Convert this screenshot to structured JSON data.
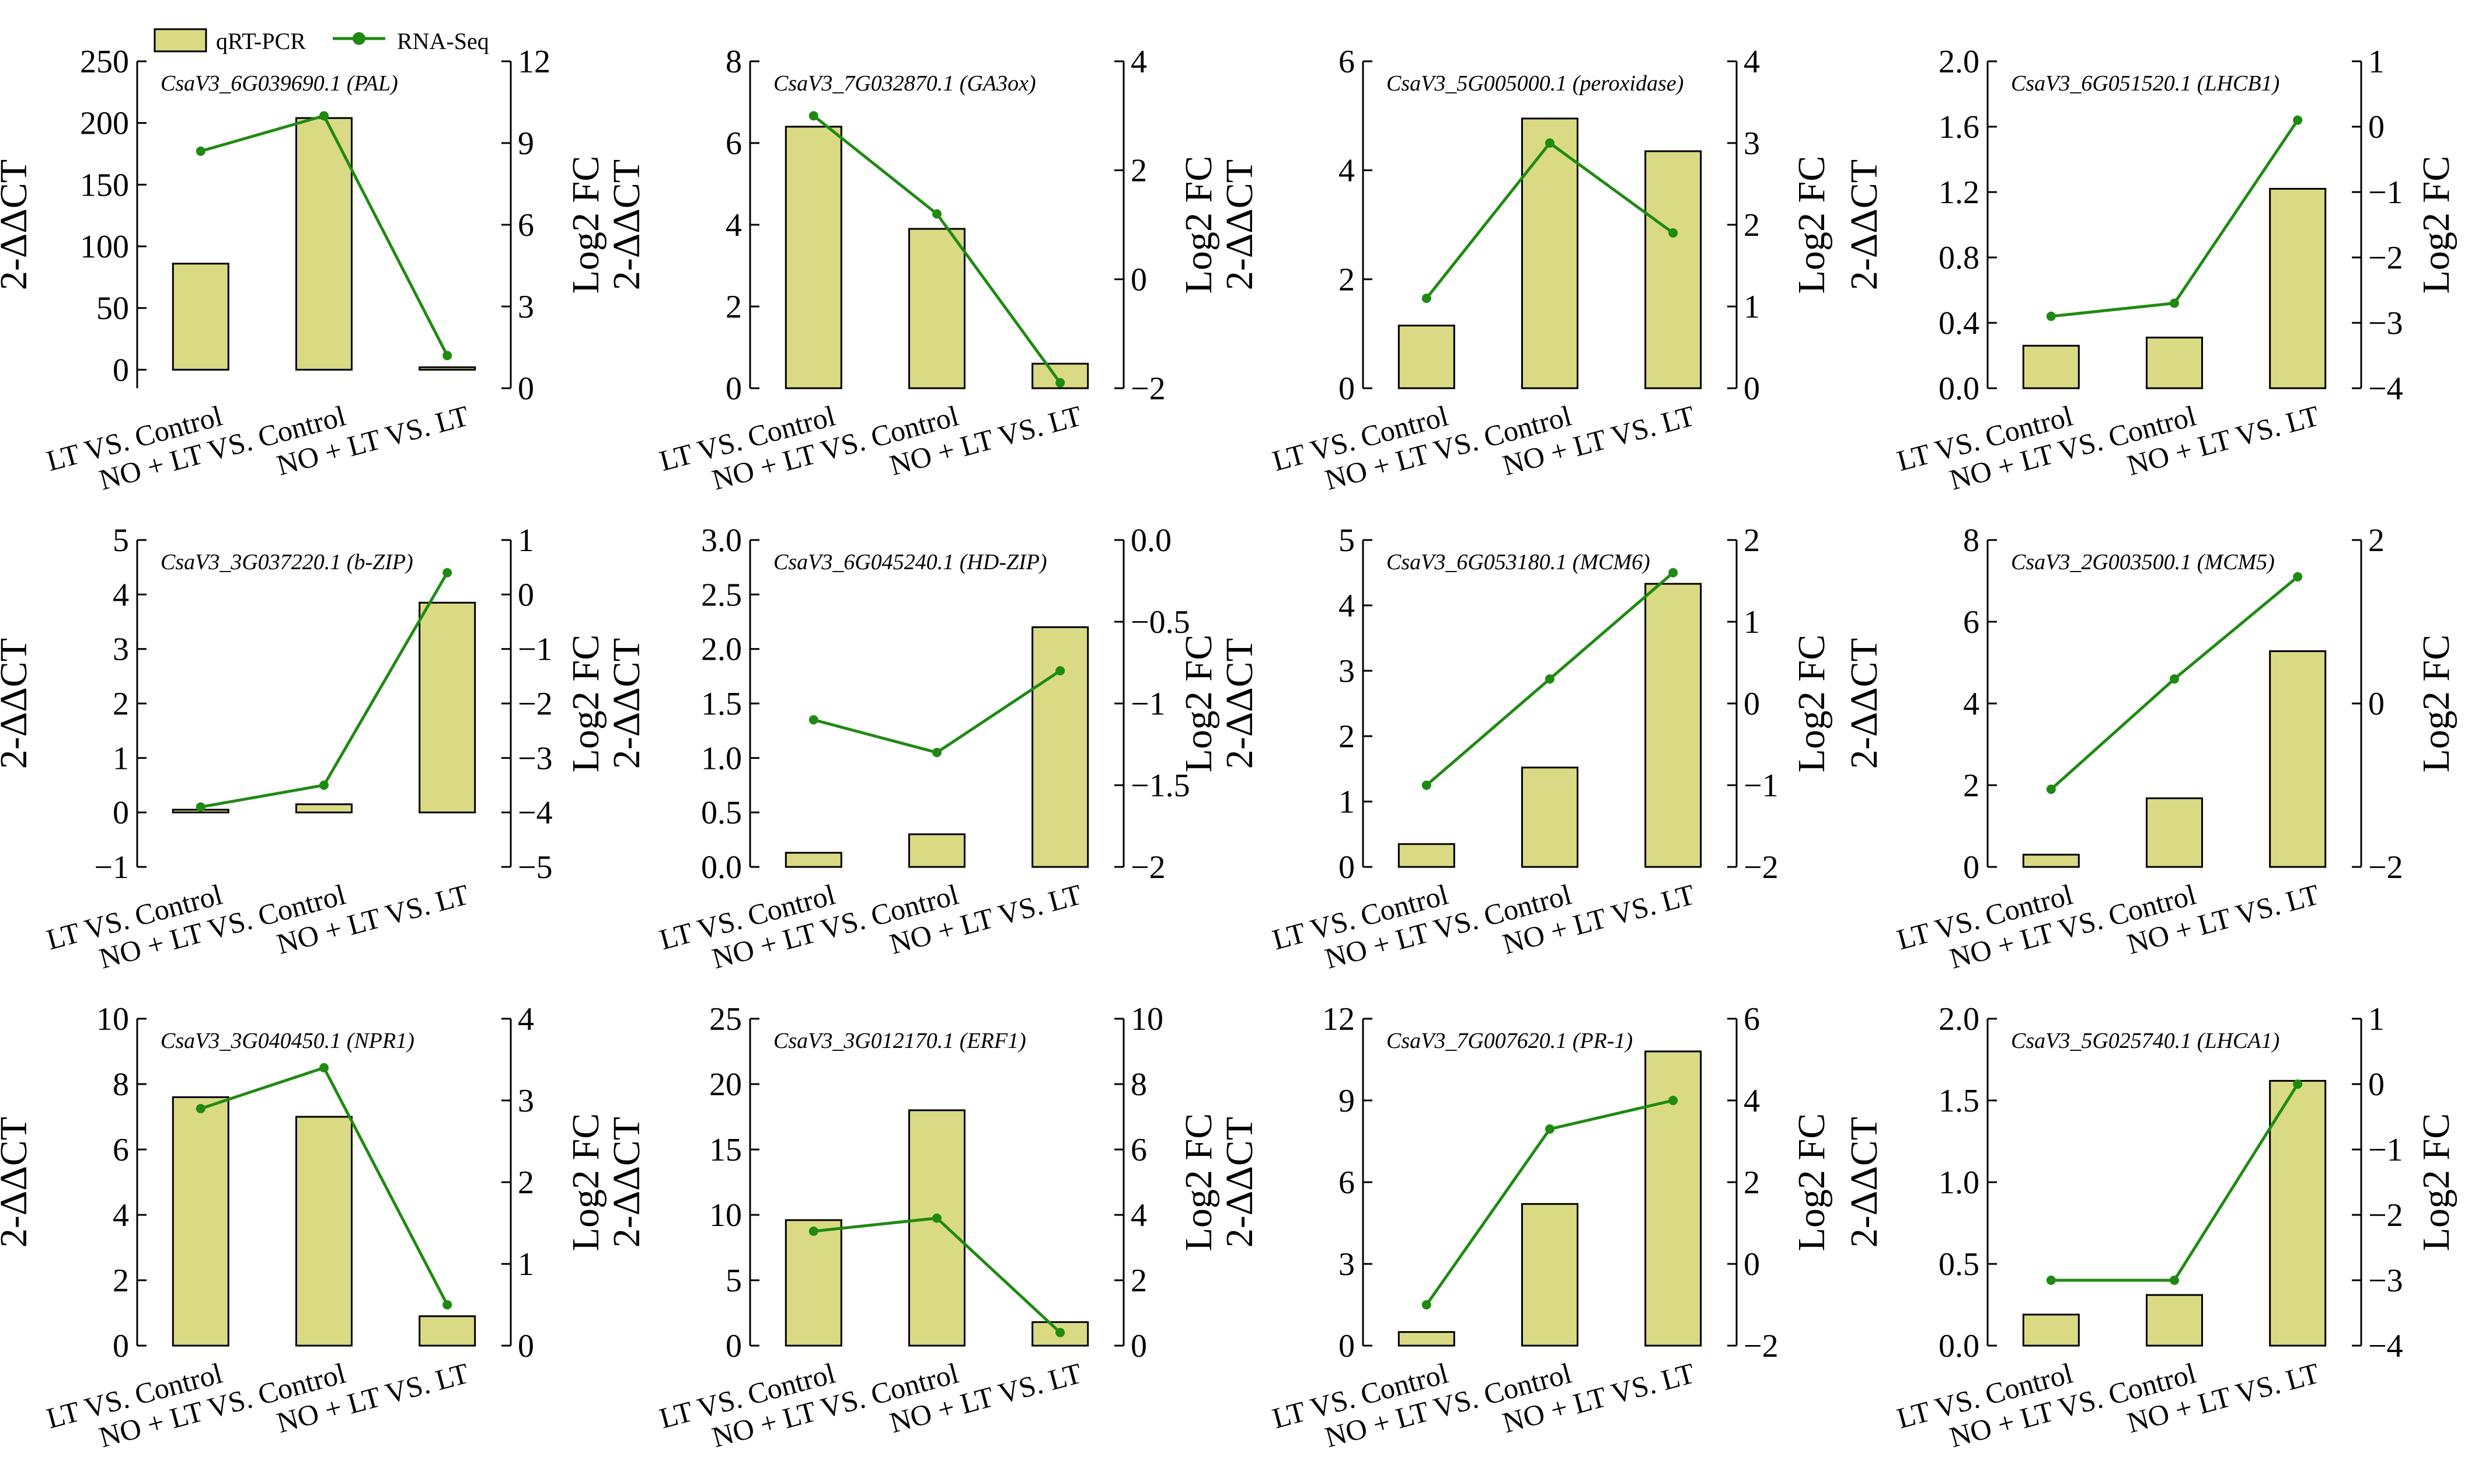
{
  "legend": {
    "bar_label": "qRT-PCR",
    "line_label": "RNA-Seq"
  },
  "colors": {
    "bar_fill": "#dada84",
    "line": "#1f8a12"
  },
  "chart_data": [
    {
      "type": "bar+line",
      "title": "CsaV3_6G039690.1 (PAL)",
      "categories": [
        "LT VS. Control",
        "NO + LT VS. Control",
        "NO + LT VS. LT"
      ],
      "bar_series": {
        "name": "qRT-PCR",
        "values": [
          86,
          204,
          2
        ]
      },
      "line_series": {
        "name": "RNA-Seq",
        "values": [
          8.7,
          10.0,
          1.2
        ]
      },
      "ylabel_left": "2-ΔΔCT",
      "ylabel_right": "Log2 FC",
      "ylim_left": [
        -15,
        250
      ],
      "yticks_left": [
        0,
        50,
        100,
        150,
        200,
        250
      ],
      "yticklabels_left": [
        "0",
        "50",
        "100",
        "150",
        "200",
        "250"
      ],
      "ylim_right": [
        0,
        12
      ],
      "yticks_right": [
        0,
        3,
        6,
        9,
        12
      ],
      "yticklabels_right": [
        "0",
        "3",
        "6",
        "9",
        "12"
      ]
    },
    {
      "type": "bar+line",
      "title": "CsaV3_7G032870.1 (GA3ox)",
      "categories": [
        "LT VS. Control",
        "NO + LT VS. Control",
        "NO + LT VS. LT"
      ],
      "bar_series": {
        "name": "qRT-PCR",
        "values": [
          6.4,
          3.9,
          0.6
        ]
      },
      "line_series": {
        "name": "RNA-Seq",
        "values": [
          3.0,
          1.2,
          -1.9
        ]
      },
      "ylabel_left": "2-ΔΔCT",
      "ylabel_right": "Log2 FC",
      "ylim_left": [
        0,
        8
      ],
      "yticks_left": [
        0,
        2,
        4,
        6,
        8
      ],
      "yticklabels_left": [
        "0",
        "2",
        "4",
        "6",
        "8"
      ],
      "ylim_right": [
        -2,
        4
      ],
      "yticks_right": [
        -2,
        0,
        2,
        4
      ],
      "yticklabels_right": [
        "−2",
        "0",
        "2",
        "4"
      ]
    },
    {
      "type": "bar+line",
      "title": "CsaV3_5G005000.1 (peroxidase)",
      "categories": [
        "LT VS. Control",
        "NO + LT VS. Control",
        "NO + LT VS. LT"
      ],
      "bar_series": {
        "name": "qRT-PCR",
        "values": [
          1.15,
          4.95,
          4.35
        ]
      },
      "line_series": {
        "name": "RNA-Seq",
        "values": [
          1.1,
          3.0,
          1.9
        ]
      },
      "ylabel_left": "2-ΔΔCT",
      "ylabel_right": "Log2 FC",
      "ylim_left": [
        0,
        6
      ],
      "yticks_left": [
        0,
        2,
        4,
        6
      ],
      "yticklabels_left": [
        "0",
        "2",
        "4",
        "6"
      ],
      "ylim_right": [
        0,
        4
      ],
      "yticks_right": [
        0,
        1,
        2,
        3,
        4
      ],
      "yticklabels_right": [
        "0",
        "1",
        "2",
        "3",
        "4"
      ]
    },
    {
      "type": "bar+line",
      "title": "CsaV3_6G051520.1 (LHCB1)",
      "categories": [
        "LT VS. Control",
        "NO + LT VS. Control",
        "NO + LT VS. LT"
      ],
      "bar_series": {
        "name": "qRT-PCR",
        "values": [
          0.26,
          0.31,
          1.22
        ]
      },
      "line_series": {
        "name": "RNA-Seq",
        "values": [
          -2.9,
          -2.7,
          0.1
        ]
      },
      "ylabel_left": "2-ΔΔCT",
      "ylabel_right": "Log2 FC",
      "ylim_left": [
        0,
        2.0
      ],
      "yticks_left": [
        0,
        0.4,
        0.8,
        1.2,
        1.6,
        2.0
      ],
      "yticklabels_left": [
        "0.0",
        "0.4",
        "0.8",
        "1.2",
        "1.6",
        "2.0"
      ],
      "ylim_right": [
        -4,
        1
      ],
      "yticks_right": [
        -4,
        -3,
        -2,
        -1,
        0,
        1
      ],
      "yticklabels_right": [
        "−4",
        "−3",
        "−2",
        "−1",
        "0",
        "1"
      ]
    },
    {
      "type": "bar+line",
      "title": "CsaV3_3G037220.1 (b-ZIP)",
      "categories": [
        "LT VS. Control",
        "NO + LT VS. Control",
        "NO + LT VS. LT"
      ],
      "bar_series": {
        "name": "qRT-PCR",
        "values": [
          0.05,
          0.15,
          3.85
        ]
      },
      "line_series": {
        "name": "RNA-Seq",
        "values": [
          -3.9,
          -3.5,
          0.4
        ]
      },
      "ylabel_left": "2-ΔΔCT",
      "ylabel_right": "Log2 FC",
      "ylim_left": [
        -1,
        5
      ],
      "yticks_left": [
        -1,
        0,
        1,
        2,
        3,
        4,
        5
      ],
      "yticklabels_left": [
        "−1",
        "0",
        "1",
        "2",
        "3",
        "4",
        "5"
      ],
      "ylim_right": [
        -5,
        1
      ],
      "yticks_right": [
        -5,
        -4,
        -3,
        -2,
        -1,
        0,
        1
      ],
      "yticklabels_right": [
        "−5",
        "−4",
        "−3",
        "−2",
        "−1",
        "0",
        "1"
      ]
    },
    {
      "type": "bar+line",
      "title": "CsaV3_6G045240.1 (HD-ZIP)",
      "categories": [
        "LT VS. Control",
        "NO + LT VS. Control",
        "NO + LT VS. LT"
      ],
      "bar_series": {
        "name": "qRT-PCR",
        "values": [
          0.13,
          0.3,
          2.2
        ]
      },
      "line_series": {
        "name": "RNA-Seq",
        "values": [
          -1.1,
          -1.3,
          -0.8
        ]
      },
      "ylabel_left": "2-ΔΔCT",
      "ylabel_right": "Log2 FC",
      "ylim_left": [
        0,
        3.0
      ],
      "yticks_left": [
        0,
        0.5,
        1.0,
        1.5,
        2.0,
        2.5,
        3.0
      ],
      "yticklabels_left": [
        "0.0",
        "0.5",
        "1.0",
        "1.5",
        "2.0",
        "2.5",
        "3.0"
      ],
      "ylim_right": [
        -2,
        0
      ],
      "yticks_right": [
        -2,
        -1.5,
        -1,
        -0.5,
        0
      ],
      "yticklabels_right": [
        "−2",
        "−1.5",
        "−1",
        "−0.5",
        "0.0"
      ]
    },
    {
      "type": "bar+line",
      "title": "CsaV3_6G053180.1 (MCM6)",
      "categories": [
        "LT VS. Control",
        "NO + LT VS. Control",
        "NO + LT VS. LT"
      ],
      "bar_series": {
        "name": "qRT-PCR",
        "values": [
          0.35,
          1.52,
          4.33
        ]
      },
      "line_series": {
        "name": "RNA-Seq",
        "values": [
          -1.0,
          0.3,
          1.6
        ]
      },
      "ylabel_left": "2-ΔΔCT",
      "ylabel_right": "Log2 FC",
      "ylim_left": [
        0,
        5
      ],
      "yticks_left": [
        0,
        1,
        2,
        3,
        4,
        5
      ],
      "yticklabels_left": [
        "0",
        "1",
        "2",
        "3",
        "4",
        "5"
      ],
      "ylim_right": [
        -2,
        2
      ],
      "yticks_right": [
        -2,
        -1,
        0,
        1,
        2
      ],
      "yticklabels_right": [
        "−2",
        "−1",
        "0",
        "1",
        "2"
      ]
    },
    {
      "type": "bar+line",
      "title": "CsaV3_2G003500.1 (MCM5)",
      "categories": [
        "LT VS. Control",
        "NO + LT VS. Control",
        "NO + LT VS. LT"
      ],
      "bar_series": {
        "name": "qRT-PCR",
        "values": [
          0.3,
          1.68,
          5.28
        ]
      },
      "line_series": {
        "name": "RNA-Seq",
        "values": [
          -1.05,
          0.3,
          1.55
        ]
      },
      "ylabel_left": "2-ΔΔCT",
      "ylabel_right": "Log2 FC",
      "ylim_left": [
        0,
        8
      ],
      "yticks_left": [
        0,
        2,
        4,
        6,
        8
      ],
      "yticklabels_left": [
        "0",
        "2",
        "4",
        "6",
        "8"
      ],
      "ylim_right": [
        -2,
        2
      ],
      "yticks_right": [
        -2,
        0,
        2
      ],
      "yticklabels_right": [
        "−2",
        "0",
        "2"
      ]
    },
    {
      "type": "bar+line",
      "title": "CsaV3_3G040450.1 (NPR1)",
      "categories": [
        "LT VS. Control",
        "NO + LT VS. Control",
        "NO + LT VS. LT"
      ],
      "bar_series": {
        "name": "qRT-PCR",
        "values": [
          7.6,
          7.0,
          0.9
        ]
      },
      "line_series": {
        "name": "RNA-Seq",
        "values": [
          2.9,
          3.4,
          0.5
        ]
      },
      "ylabel_left": "2-ΔΔCT",
      "ylabel_right": "Log2 FC",
      "ylim_left": [
        0,
        10
      ],
      "yticks_left": [
        0,
        2,
        4,
        6,
        8,
        10
      ],
      "yticklabels_left": [
        "0",
        "2",
        "4",
        "6",
        "8",
        "10"
      ],
      "ylim_right": [
        0,
        4
      ],
      "yticks_right": [
        0,
        1,
        2,
        3,
        4
      ],
      "yticklabels_right": [
        "0",
        "1",
        "2",
        "3",
        "4"
      ]
    },
    {
      "type": "bar+line",
      "title": "CsaV3_3G012170.1 (ERF1)",
      "categories": [
        "LT VS. Control",
        "NO + LT VS. Control",
        "NO + LT VS. LT"
      ],
      "bar_series": {
        "name": "qRT-PCR",
        "values": [
          9.6,
          18.0,
          1.8
        ]
      },
      "line_series": {
        "name": "RNA-Seq",
        "values": [
          3.5,
          3.9,
          0.4
        ]
      },
      "ylabel_left": "2-ΔΔCT",
      "ylabel_right": "Log2 FC",
      "ylim_left": [
        0,
        25
      ],
      "yticks_left": [
        0,
        5,
        10,
        15,
        20,
        25
      ],
      "yticklabels_left": [
        "0",
        "5",
        "10",
        "15",
        "20",
        "25"
      ],
      "ylim_right": [
        0,
        10
      ],
      "yticks_right": [
        0,
        2,
        4,
        6,
        8,
        10
      ],
      "yticklabels_right": [
        "0",
        "2",
        "4",
        "6",
        "8",
        "10"
      ]
    },
    {
      "type": "bar+line",
      "title": "CsaV3_7G007620.1 (PR-1)",
      "categories": [
        "LT VS. Control",
        "NO + LT VS. Control",
        "NO + LT VS. LT"
      ],
      "bar_series": {
        "name": "qRT-PCR",
        "values": [
          0.5,
          5.2,
          10.8
        ]
      },
      "line_series": {
        "name": "RNA-Seq",
        "values": [
          -1.0,
          3.3,
          4.0
        ]
      },
      "ylabel_left": "2-ΔΔCT",
      "ylabel_right": "Log2 FC",
      "ylim_left": [
        0,
        12
      ],
      "yticks_left": [
        0,
        3,
        6,
        9,
        12
      ],
      "yticklabels_left": [
        "0",
        "3",
        "6",
        "9",
        "12"
      ],
      "ylim_right": [
        -2,
        6
      ],
      "yticks_right": [
        -2,
        0,
        2,
        4,
        6
      ],
      "yticklabels_right": [
        "−2",
        "0",
        "2",
        "4",
        "6"
      ]
    },
    {
      "type": "bar+line",
      "title": "CsaV3_5G025740.1 (LHCA1)",
      "categories": [
        "LT VS. Control",
        "NO + LT VS. Control",
        "NO + LT VS. LT"
      ],
      "bar_series": {
        "name": "qRT-PCR",
        "values": [
          0.19,
          0.31,
          1.62
        ]
      },
      "line_series": {
        "name": "RNA-Seq",
        "values": [
          -3.0,
          -3.0,
          0.0
        ]
      },
      "ylabel_left": "2-ΔΔCT",
      "ylabel_right": "Log2 FC",
      "ylim_left": [
        0,
        2.0
      ],
      "yticks_left": [
        0,
        0.5,
        1.0,
        1.5,
        2.0
      ],
      "yticklabels_left": [
        "0.0",
        "0.5",
        "1.0",
        "1.5",
        "2.0"
      ],
      "ylim_right": [
        -4,
        1
      ],
      "yticks_right": [
        -4,
        -3,
        -2,
        -1,
        0,
        1
      ],
      "yticklabels_right": [
        "−4",
        "−3",
        "−2",
        "−1",
        "0",
        "1"
      ]
    }
  ]
}
